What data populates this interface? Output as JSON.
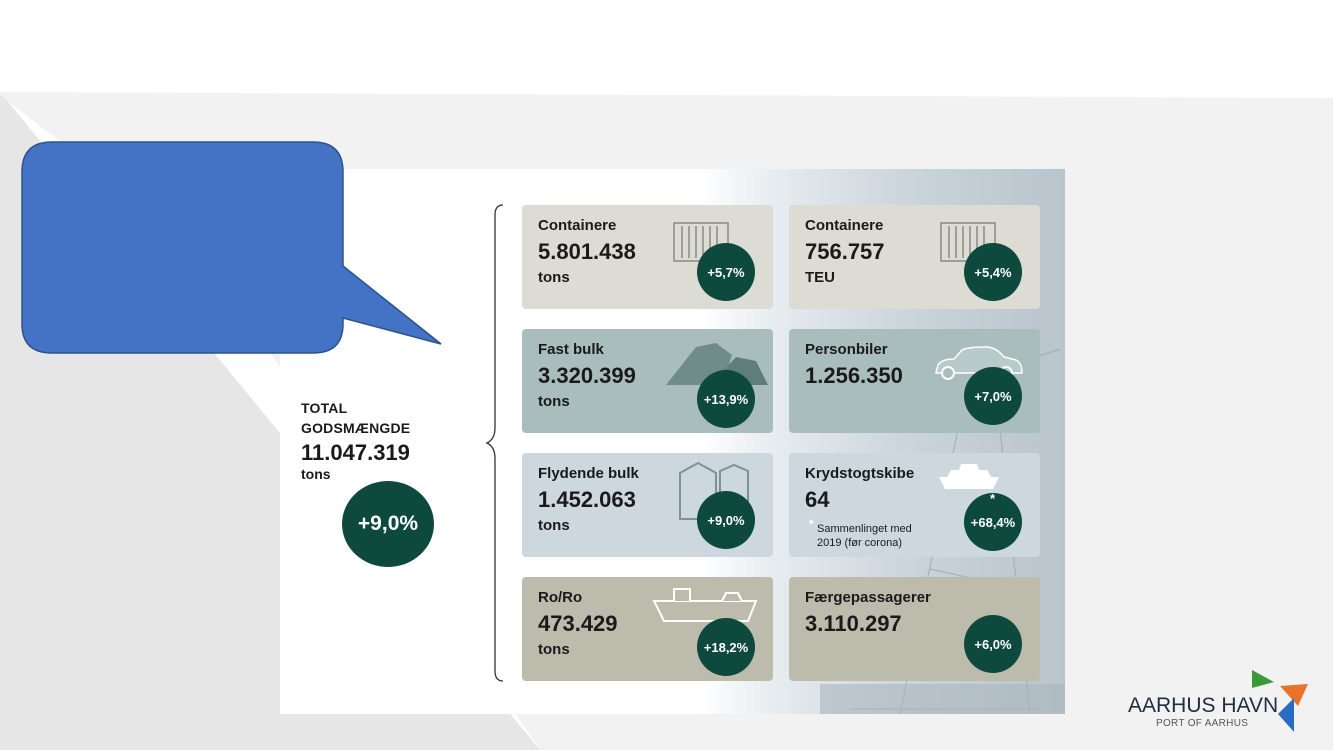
{
  "total": {
    "label_line1": "TOTAL",
    "label_line2": "GODSMÆNGDE",
    "value": "11.047.319",
    "unit": "tons",
    "change": "+9,0%"
  },
  "cards": [
    {
      "title": "Containere",
      "value": "5.801.438",
      "unit": "tons",
      "change": "+5,7%"
    },
    {
      "title": "Containere",
      "value": "756.757",
      "unit": "TEU",
      "change": "+5,4%"
    },
    {
      "title": "Fast bulk",
      "value": "3.320.399",
      "unit": "tons",
      "change": "+13,9%"
    },
    {
      "title": "Personbiler",
      "value": "1.256.350",
      "unit": "",
      "change": "+7,0%"
    },
    {
      "title": "Flydende bulk",
      "value": "1.452.063",
      "unit": "tons",
      "change": "+9,0%"
    },
    {
      "title": "Krydstogtskibe",
      "value": "64",
      "unit": "",
      "change": "+68,4%",
      "badge_mark": "*",
      "note_mark": "*",
      "note": "Sammenlinget med 2019 (før corona)"
    },
    {
      "title": "Ro/Ro",
      "value": "473.429",
      "unit": "tons",
      "change": "+18,2%"
    },
    {
      "title": "Færgepassagerer",
      "value": "3.110.297",
      "unit": "",
      "change": "+6,0%"
    }
  ],
  "logo": {
    "name": "AARHUS HAVN",
    "subtitle": "PORT OF AARHUS"
  },
  "colors": {
    "badge": "#0d4a3d",
    "callout": "#4472c4",
    "card_grey": "#dcdbd4",
    "card_teal": "#a9bdbc",
    "card_blue": "#ccd8de",
    "card_taupe": "#bdbbac",
    "logo_green": "#3a9a3a",
    "logo_orange": "#e8742a",
    "logo_blue": "#2a6cc4"
  },
  "icons": [
    "container-icon",
    "bulk-pile-icon",
    "car-icon",
    "tank-icon",
    "cruise-ship-icon",
    "roro-ship-icon"
  ]
}
